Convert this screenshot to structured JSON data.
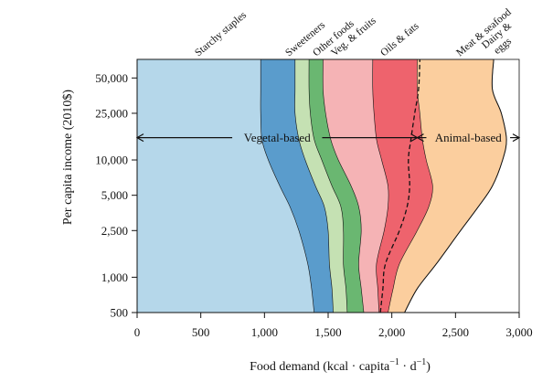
{
  "chart_data": {
    "type": "area",
    "title": "",
    "xlabel": "Food demand (kcal · capita",
    "xlabel_sup": "−1",
    "xlabel_mid": " · d",
    "xlabel_sup2": "−1",
    "xlabel_end": ")",
    "ylabel": "Per capita income (2010$)",
    "xlim": [
      0,
      3000
    ],
    "y_scale": "log",
    "ylim": [
      500,
      72000
    ],
    "x_ticks": [
      0,
      500,
      1000,
      1500,
      2000,
      2500,
      3000
    ],
    "x_tick_labels": [
      "0",
      "500",
      "1,000",
      "1,500",
      "2,000",
      "2,500",
      "3,000"
    ],
    "y_ticks": [
      500,
      1000,
      2500,
      5000,
      10000,
      25000,
      50000
    ],
    "y_tick_labels": [
      "500",
      "1,000",
      "2,500",
      "5,000",
      "10,000",
      "25,000",
      "50,000"
    ],
    "income_levels": [
      500,
      800,
      1300,
      2500,
      4000,
      6000,
      10000,
      15000,
      25000,
      40000,
      72000
    ],
    "series": [
      {
        "name": "Starchy staples",
        "color": "#b5d7ea",
        "cumulative": [
          1390,
          1370,
          1340,
          1270,
          1200,
          1120,
          1030,
          980,
          970,
          970,
          970
        ]
      },
      {
        "name": "Sweeteners",
        "color": "#5a9ccc",
        "cumulative": [
          1540,
          1530,
          1510,
          1500,
          1470,
          1400,
          1320,
          1270,
          1240,
          1240,
          1240
        ]
      },
      {
        "name": "Other foods",
        "color": "#c5e1b3",
        "cumulative": [
          1650,
          1640,
          1620,
          1620,
          1600,
          1530,
          1450,
          1390,
          1360,
          1350,
          1350
        ]
      },
      {
        "name": "Veg. & fruits",
        "color": "#6ab771",
        "cumulative": [
          1780,
          1760,
          1740,
          1760,
          1740,
          1680,
          1580,
          1520,
          1480,
          1460,
          1460
        ]
      },
      {
        "name": "Oils & fats",
        "color": "#f5b3b5",
        "cumulative": [
          1900,
          1890,
          1880,
          1940,
          1970,
          1970,
          1920,
          1880,
          1860,
          1850,
          1850
        ]
      },
      {
        "name": "Meat & seafood",
        "color": "#ee636d",
        "cumulative": [
          1970,
          2010,
          2060,
          2200,
          2290,
          2320,
          2270,
          2240,
          2220,
          2200,
          2200
        ]
      },
      {
        "name": "Dairy & eggs",
        "color": "#fbce9e",
        "cumulative": [
          2100,
          2200,
          2350,
          2540,
          2680,
          2790,
          2870,
          2900,
          2860,
          2790,
          2800
        ]
      }
    ],
    "outer_boundary": {
      "name": "Total",
      "values": [
        2100,
        2200,
        2350,
        2540,
        2680,
        2790,
        2870,
        2900,
        2860,
        2790,
        2800
      ]
    },
    "dashed_line": {
      "name": "Vegetal/animal boundary",
      "values": [
        1910,
        1930,
        1950,
        2060,
        2120,
        2140,
        2130,
        2150,
        2180,
        2210,
        2220
      ]
    },
    "annotations": [
      {
        "text": "Vegetal-based",
        "income": 15500,
        "x_start": 0,
        "x_end": 2200
      },
      {
        "text": "Animal-based",
        "income": 15500,
        "x_start": 2200,
        "x_end": 3000
      }
    ],
    "category_labels": [
      "Starchy staples",
      "Sweeteners",
      "Other foods",
      "Veg. & fruits",
      "Oils & fats",
      "Meat & seafood",
      "Dairy & eggs"
    ]
  }
}
